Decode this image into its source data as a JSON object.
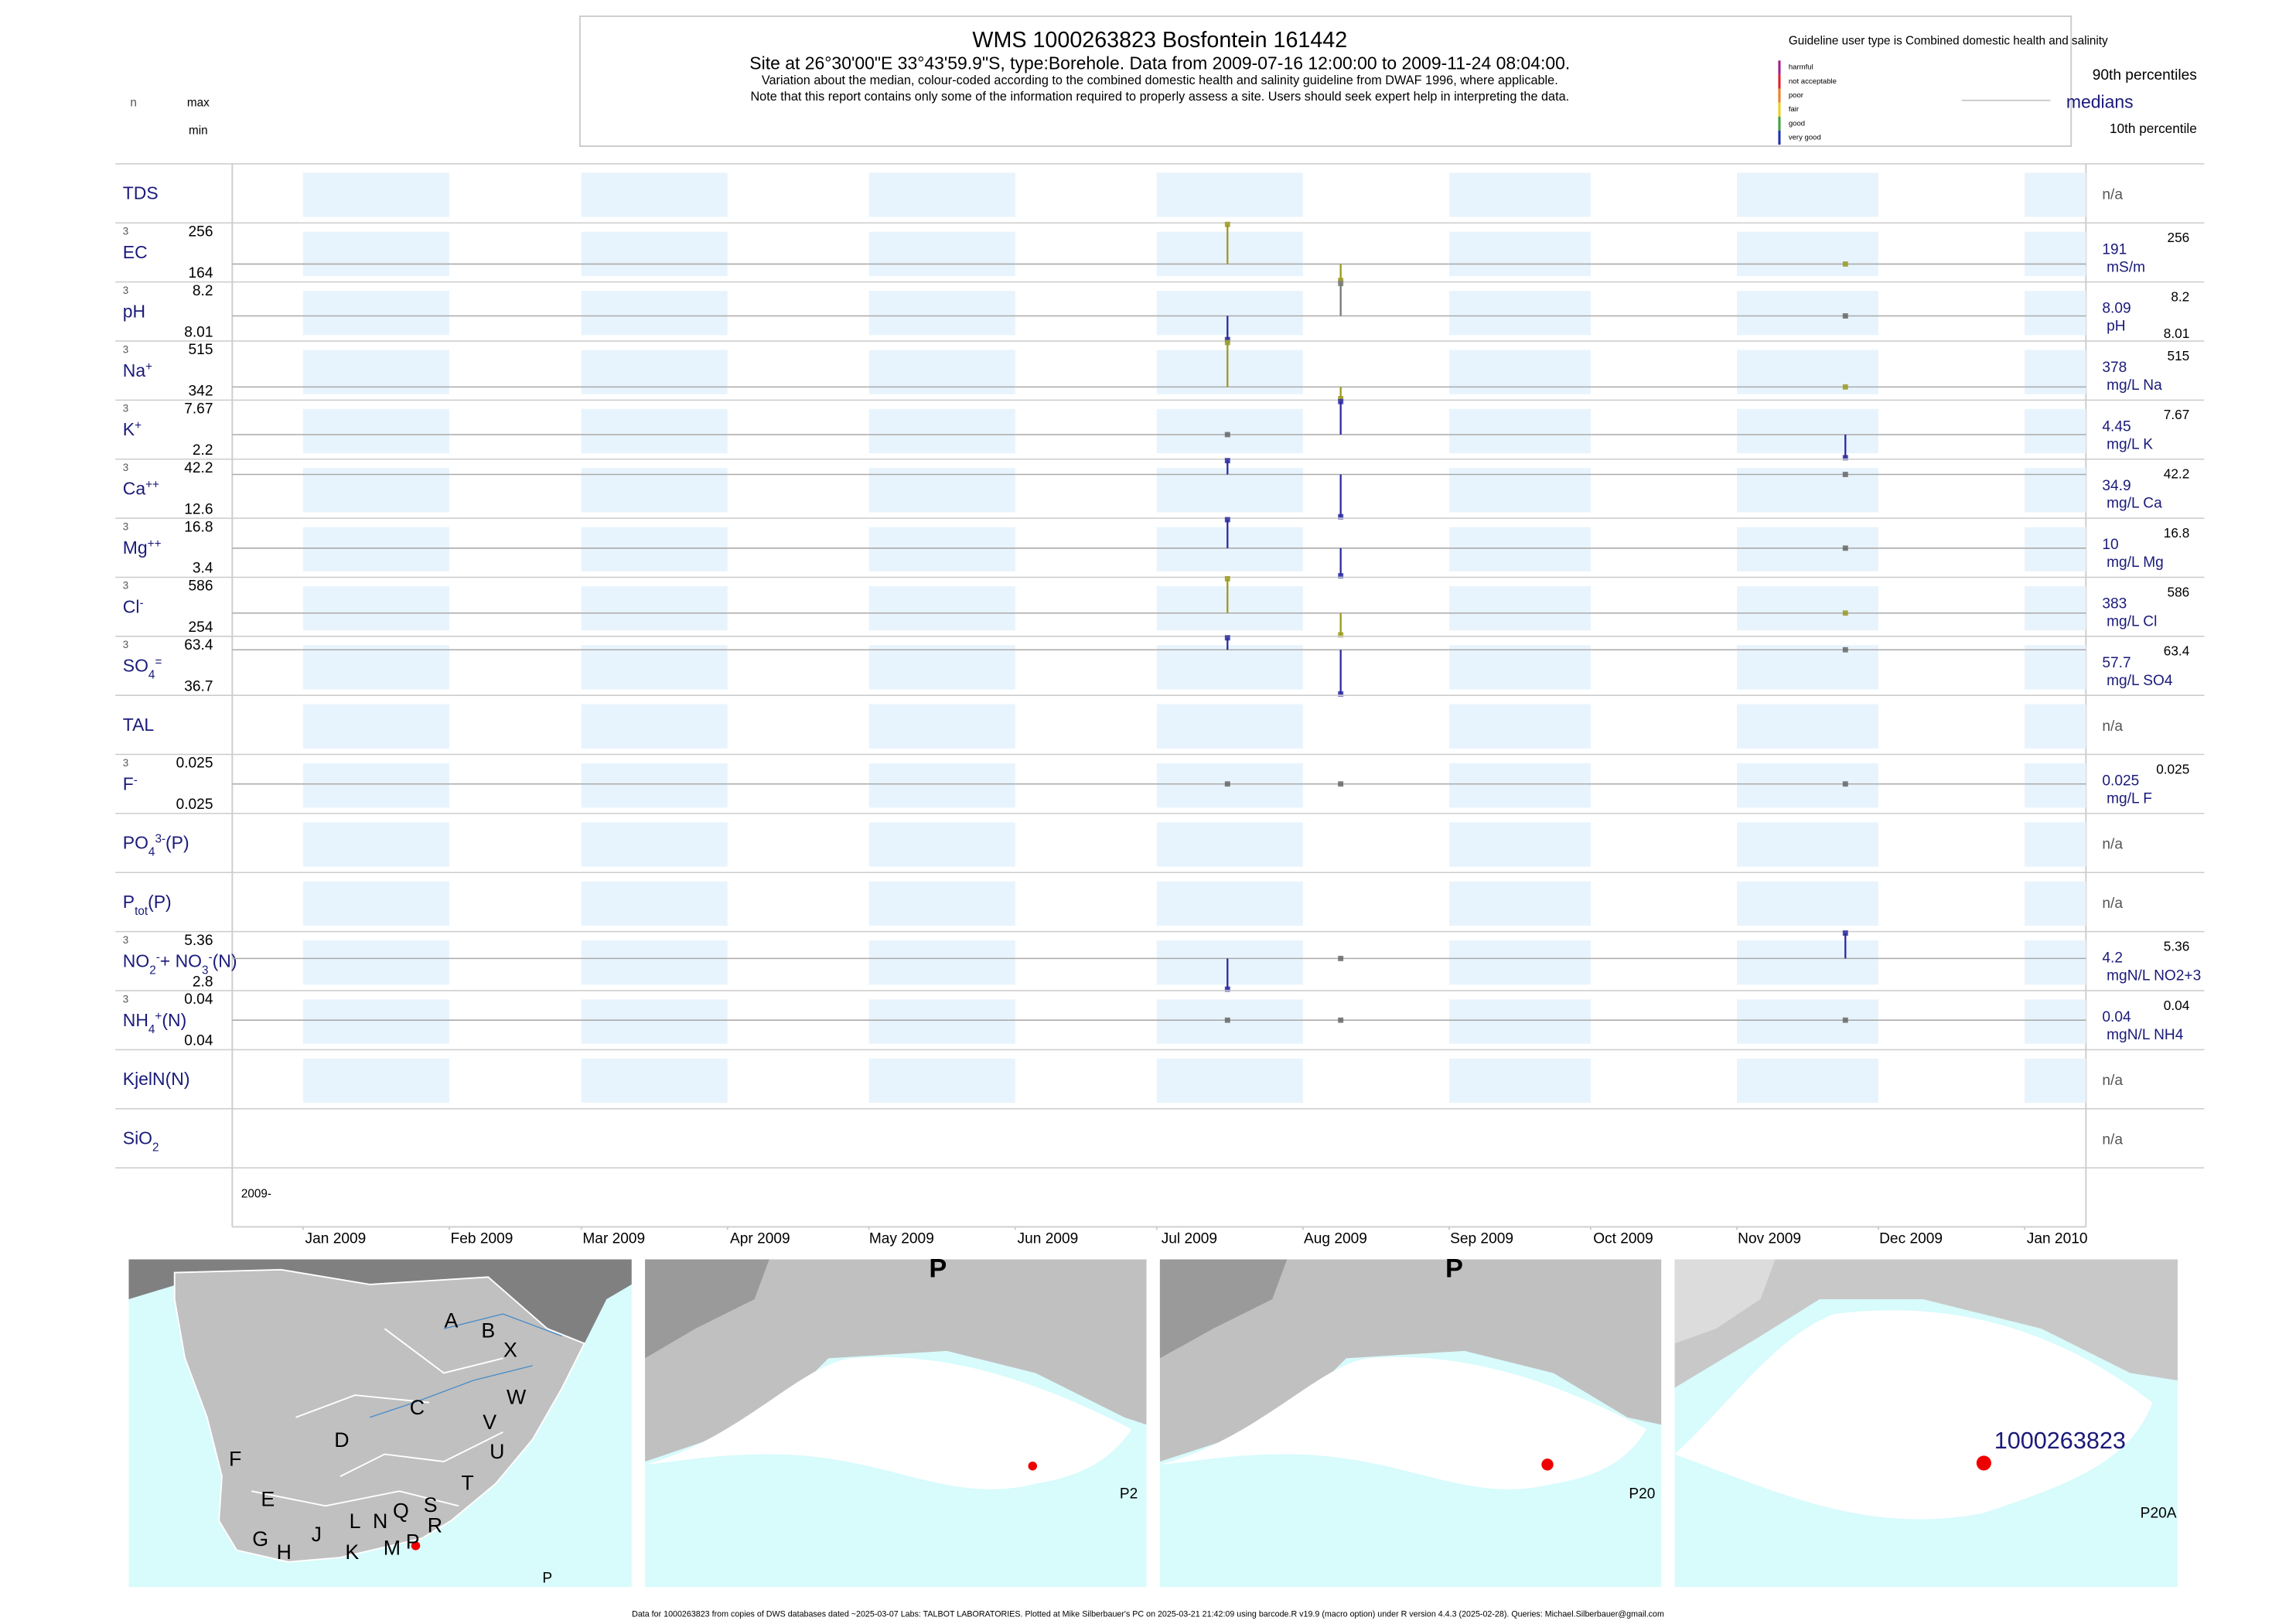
{
  "chart_data": {
    "type": "barcode",
    "title": "WMS 1000263823  Bosfontein 161442",
    "subtitle": "Site at 26°30'00\"E 33°43'59.9\"S, type:Borehole.  Data from 2009-07-16 12:00:00 to 2009-11-24 08:04:00.",
    "notes": [
      "Variation about the median,  colour-coded according to the combined domestic health and salinity guideline from DWAF 1996, where applicable.",
      "Note that this report contains only some of the information required to properly assess a site. Users should seek expert help in interpreting the data."
    ],
    "guideline_title": "Guideline user type is Combined domestic health and salinity",
    "guideline_classes": [
      {
        "name": "harmful",
        "color": "#a0208a"
      },
      {
        "name": "not acceptable",
        "color": "#e0202a"
      },
      {
        "name": "poor",
        "color": "#f08020"
      },
      {
        "name": "fair",
        "color": "#e8d020"
      },
      {
        "name": "good",
        "color": "#40a040"
      },
      {
        "name": "very good",
        "color": "#2030b0"
      }
    ],
    "percentile_labels": {
      "upper": "90th percentiles",
      "median": "medians",
      "lower": "10th percentile"
    },
    "column_heads": {
      "n": "n",
      "max": "max",
      "min": "min"
    },
    "xlim": [
      "2008-12-17",
      "2010-01-14"
    ],
    "xticks": [
      {
        "value": "2009-01-01",
        "label": "Jan 2009"
      },
      {
        "value": "2009-02-01",
        "label": "Feb 2009"
      },
      {
        "value": "2009-03-01",
        "label": "Mar 2009"
      },
      {
        "value": "2009-04-01",
        "label": "Apr 2009"
      },
      {
        "value": "2009-05-01",
        "label": "May 2009"
      },
      {
        "value": "2009-06-01",
        "label": "Jun 2009"
      },
      {
        "value": "2009-07-01",
        "label": "Jul 2009"
      },
      {
        "value": "2009-08-01",
        "label": "Aug 2009"
      },
      {
        "value": "2009-09-01",
        "label": "Sep 2009"
      },
      {
        "value": "2009-10-01",
        "label": "Oct 2009"
      },
      {
        "value": "2009-11-01",
        "label": "Nov 2009"
      },
      {
        "value": "2009-12-01",
        "label": "Dec 2009"
      },
      {
        "value": "2010-01-01",
        "label": "Jan 2010"
      }
    ],
    "year_label": "2009-",
    "samples": [
      "2009-07-16",
      "2009-08-09",
      "2009-11-24"
    ],
    "rows": [
      {
        "label": [
          {
            "text": "TDS"
          }
        ],
        "right": "n/a"
      },
      {
        "label": [
          {
            "text": "EC"
          }
        ],
        "n": 3,
        "max": 256,
        "min": 164,
        "median": 191,
        "unit": "mS/m",
        "right_max": 256,
        "values": [
          256,
          164,
          191
        ],
        "colors": [
          "#9a9a1e",
          "#9a9a1e",
          "#9a9a1e"
        ]
      },
      {
        "label": [
          {
            "text": "pH"
          }
        ],
        "n": 3,
        "max": 8.2,
        "min": 8.01,
        "median": 8.09,
        "unit": "pH",
        "right_max": 8.2,
        "right_min": 8.01,
        "values": [
          8.01,
          8.2,
          8.09
        ],
        "colors": [
          "#2a2aa0",
          "#777777",
          "#666666"
        ]
      },
      {
        "label": [
          {
            "text": "Na"
          },
          {
            "text": "+",
            "pos": "sup"
          }
        ],
        "n": 3,
        "max": 515,
        "min": 342,
        "median": 378,
        "unit": "mg/L Na",
        "right_max": 515,
        "values": [
          515,
          342,
          378
        ],
        "colors": [
          "#9a9a1e",
          "#9a9a1e",
          "#9a9a1e"
        ]
      },
      {
        "label": [
          {
            "text": "K"
          },
          {
            "text": "+",
            "pos": "sup"
          }
        ],
        "n": 3,
        "max": 7.67,
        "min": 2.2,
        "median": 4.45,
        "unit": "mg/L K",
        "right_max": 7.67,
        "values": [
          4.45,
          7.67,
          2.2
        ],
        "colors": [
          "#666666",
          "#2a2aa0",
          "#2a2aa0"
        ]
      },
      {
        "label": [
          {
            "text": "Ca"
          },
          {
            "text": "++",
            "pos": "sup"
          }
        ],
        "n": 3,
        "max": 42.2,
        "min": 12.6,
        "median": 34.9,
        "unit": "mg/L Ca",
        "right_max": 42.2,
        "values": [
          42.2,
          12.6,
          34.9
        ],
        "colors": [
          "#2a2aa0",
          "#2a2aa0",
          "#666666"
        ]
      },
      {
        "label": [
          {
            "text": "Mg"
          },
          {
            "text": "++",
            "pos": "sup"
          }
        ],
        "n": 3,
        "max": 16.8,
        "min": 3.4,
        "median": 10,
        "unit": "mg/L Mg",
        "right_max": 16.8,
        "values": [
          16.8,
          3.4,
          10
        ],
        "colors": [
          "#2a2aa0",
          "#2a2aa0",
          "#666666"
        ]
      },
      {
        "label": [
          {
            "text": "Cl"
          },
          {
            "text": "-",
            "pos": "sup"
          }
        ],
        "n": 3,
        "max": 586,
        "min": 254,
        "median": 383,
        "unit": "mg/L Cl",
        "right_max": 586,
        "values": [
          586,
          254,
          383
        ],
        "colors": [
          "#9a9a1e",
          "#9a9a1e",
          "#9a9a1e"
        ]
      },
      {
        "label": [
          {
            "text": "SO"
          },
          {
            "text": "4",
            "pos": "sub"
          },
          {
            "text": "=",
            "pos": "sup"
          }
        ],
        "n": 3,
        "max": 63.4,
        "min": 36.7,
        "median": 57.7,
        "unit": "mg/L SO4",
        "right_max": 63.4,
        "values": [
          63.4,
          36.7,
          57.7
        ],
        "colors": [
          "#2a2aa0",
          "#2a2aa0",
          "#666666"
        ]
      },
      {
        "label": [
          {
            "text": "TAL"
          }
        ],
        "right": "n/a"
      },
      {
        "label": [
          {
            "text": "F"
          },
          {
            "text": "-",
            "pos": "sup"
          }
        ],
        "n": 3,
        "max": 0.025,
        "min": 0.025,
        "median": 0.025,
        "unit": "mg/L F",
        "right_max": 0.025,
        "values": [
          0.025,
          0.025,
          0.025
        ],
        "colors": [
          "#666666",
          "#666666",
          "#666666"
        ]
      },
      {
        "label": [
          {
            "text": "PO"
          },
          {
            "text": "4",
            "pos": "sub"
          },
          {
            "text": "3-",
            "pos": "sup"
          },
          {
            "text": "(P)"
          }
        ],
        "right": "n/a"
      },
      {
        "label": [
          {
            "text": "P"
          },
          {
            "text": "tot",
            "pos": "sub"
          },
          {
            "text": "(P)"
          }
        ],
        "right": "n/a"
      },
      {
        "label": [
          {
            "text": "NO"
          },
          {
            "text": "2",
            "pos": "sub"
          },
          {
            "text": "-",
            "pos": "sup"
          },
          {
            "text": "+ NO"
          },
          {
            "text": "3",
            "pos": "sub"
          },
          {
            "text": "-",
            "pos": "sup"
          },
          {
            "text": "(N)"
          }
        ],
        "n": 3,
        "max": 5.36,
        "min": 2.8,
        "median": 4.2,
        "unit": "mgN/L NO2+3",
        "right_max": 5.36,
        "values": [
          2.8,
          4.2,
          5.36
        ],
        "colors": [
          "#2a2aa0",
          "#666666",
          "#2a2aa0"
        ]
      },
      {
        "label": [
          {
            "text": "NH"
          },
          {
            "text": "4",
            "pos": "sub"
          },
          {
            "text": "+",
            "pos": "sup"
          },
          {
            "text": "(N)"
          }
        ],
        "n": 3,
        "max": 0.04,
        "min": 0.04,
        "median": 0.04,
        "unit": "mgN/L NH4",
        "right_max": 0.04,
        "values": [
          0.04,
          0.04,
          0.04
        ],
        "colors": [
          "#666666",
          "#666666",
          "#666666"
        ]
      },
      {
        "label": [
          {
            "text": "KjelN(N)"
          }
        ],
        "right": "n/a"
      },
      {
        "label": [
          {
            "text": "SiO"
          },
          {
            "text": "2",
            "pos": "sub"
          }
        ],
        "right": "n/a"
      }
    ],
    "maps": [
      {
        "label": "P",
        "letters": [
          "A",
          "B",
          "X",
          "W",
          "C",
          "V",
          "U",
          "D",
          "T",
          "F",
          "E",
          "S",
          "Q",
          "R",
          "N",
          "L",
          "G",
          "H",
          "J",
          "K",
          "M",
          "P"
        ]
      },
      {
        "label": "P2",
        "top_label": "P"
      },
      {
        "label": "P20",
        "top_label": "P"
      },
      {
        "label": "P20A",
        "site": "1000263823"
      }
    ],
    "footer": "Data for 1000263823 from copies of DWS databases dated ~2025-03-07 Labs: TALBOT LABORATORIES. Plotted at Mike Silberbauer's PC on 2025-03-21 21:42:09 using barcode.R v19.9 (macro option) under R version 4.4.3 (2025-02-28). Queries: Michael.Silberbauer@gmail.com"
  }
}
